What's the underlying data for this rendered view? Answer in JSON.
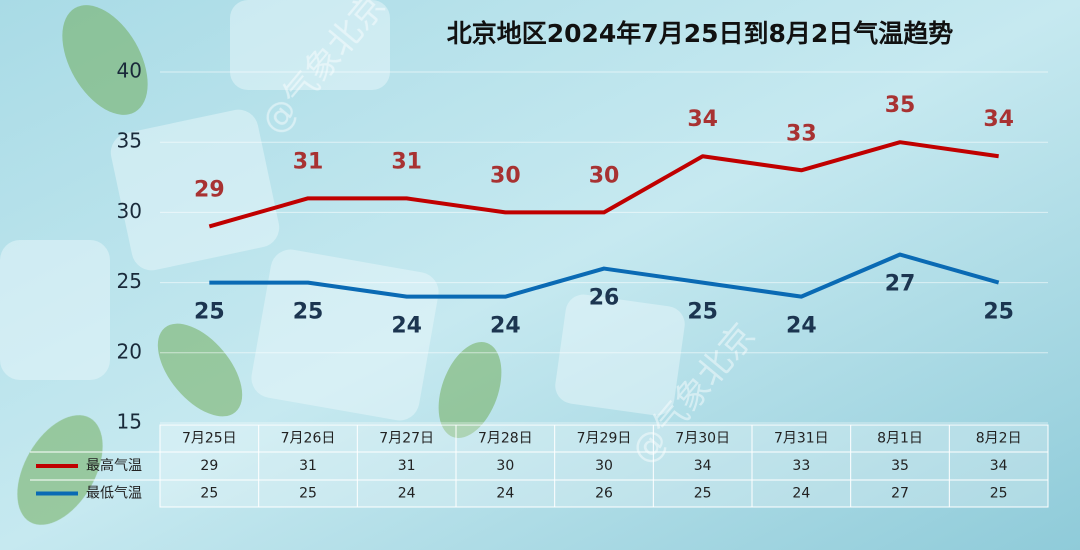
{
  "chart_data": {
    "type": "line",
    "title": "北京地区2024年7月25日到8月2日气温趋势",
    "watermark": "@气象北京",
    "categories": [
      "7月25日",
      "7月26日",
      "7月27日",
      "7月28日",
      "7月29日",
      "7月30日",
      "7月31日",
      "8月1日",
      "8月2日"
    ],
    "series": [
      {
        "name": "最高气温",
        "color": "#c00000",
        "values": [
          29,
          31,
          31,
          30,
          30,
          34,
          33,
          35,
          34
        ]
      },
      {
        "name": "最低气温",
        "color": "#0a6ab4",
        "values": [
          25,
          25,
          24,
          24,
          26,
          25,
          24,
          27,
          25
        ]
      }
    ],
    "ylim": [
      15,
      40
    ],
    "yticks": [
      15,
      20,
      25,
      30,
      35,
      40
    ],
    "grid": true
  }
}
